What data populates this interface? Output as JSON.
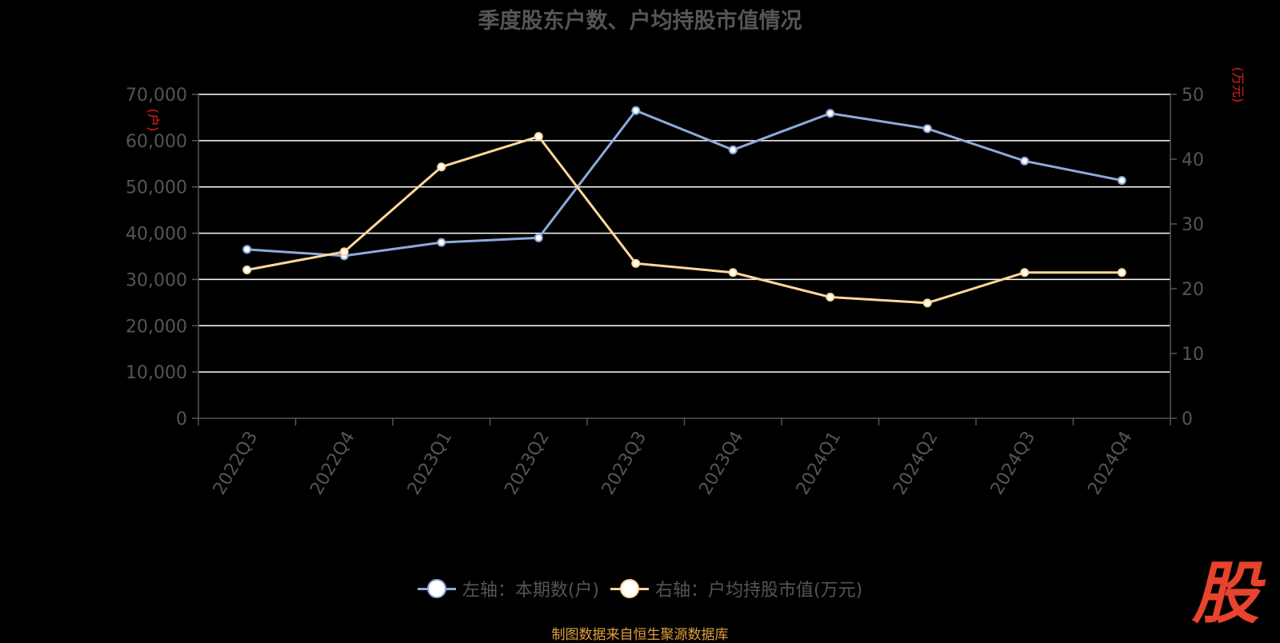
{
  "title": "季度股东户数、户均持股市值情况",
  "source": "制图数据来自恒生聚源数据库",
  "logo_text": "股",
  "colors": {
    "background": "#000000",
    "series_left": "#8eaadb",
    "series_right": "#fdd89a",
    "axis_text": "#555555",
    "unit_label": "#e02020",
    "grid": "#ffffff"
  },
  "chart_data": {
    "type": "line",
    "title": "季度股东户数、户均持股市值情况",
    "categories": [
      "2022Q3",
      "2022Q4",
      "2023Q1",
      "2023Q2",
      "2023Q3",
      "2023Q4",
      "2024Q1",
      "2024Q2",
      "2024Q3",
      "2024Q4"
    ],
    "y_left": {
      "label": "(户)",
      "range": [
        0,
        70000
      ],
      "ticks": [
        0,
        10000,
        20000,
        30000,
        40000,
        50000,
        60000,
        70000
      ],
      "tick_labels": [
        "0",
        "10,000",
        "20,000",
        "30,000",
        "40,000",
        "50,000",
        "60,000",
        "70,000"
      ]
    },
    "y_right": {
      "label": "(万元)",
      "range": [
        0,
        50
      ],
      "ticks": [
        0,
        10,
        20,
        30,
        40,
        50
      ],
      "tick_labels": [
        "0",
        "10",
        "20",
        "30",
        "40",
        "50"
      ]
    },
    "series": [
      {
        "name": "左轴：本期数(户)",
        "axis": "left",
        "color": "#8eaadb",
        "values": [
          36500,
          35100,
          38000,
          39000,
          66500,
          58000,
          65900,
          62600,
          55600,
          51400
        ]
      },
      {
        "name": "右轴：户均持股市值(万元)",
        "axis": "right",
        "color": "#fdd89a",
        "values": [
          22.9,
          25.7,
          38.8,
          43.5,
          23.9,
          22.5,
          18.7,
          17.8,
          22.5,
          22.5
        ]
      }
    ],
    "grid": true,
    "legend": "bottom-center"
  }
}
